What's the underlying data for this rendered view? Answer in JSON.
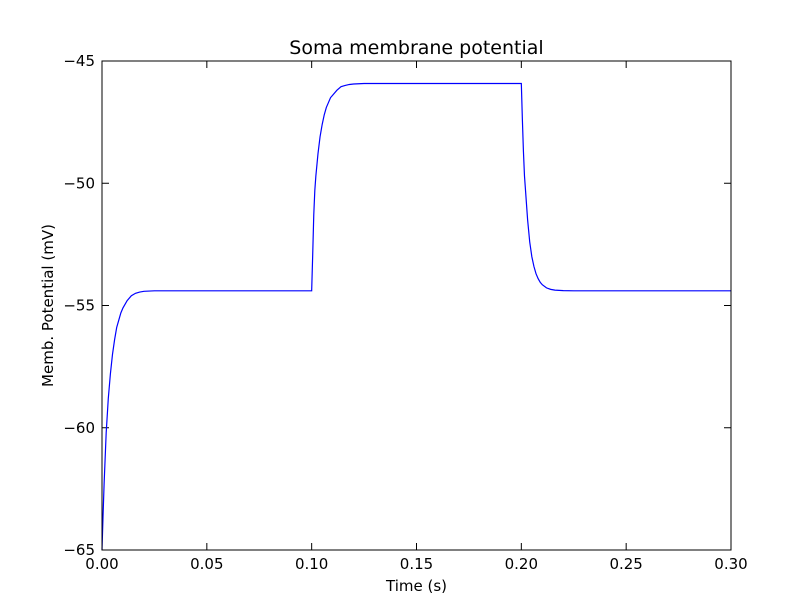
{
  "chart_data": {
    "type": "line",
    "title": "Soma membrane potential",
    "xlabel": "Time (s)",
    "ylabel": "Memb. Potential (mV)",
    "xlim": [
      0.0,
      0.3
    ],
    "ylim": [
      -65,
      -45
    ],
    "x_ticks": [
      "0.00",
      "0.05",
      "0.10",
      "0.15",
      "0.20",
      "0.25",
      "0.30"
    ],
    "y_ticks": [
      "−45",
      "−50",
      "−55",
      "−60",
      "−65"
    ],
    "x_tick_values": [
      0.0,
      0.05,
      0.1,
      0.15,
      0.2,
      0.25,
      0.3
    ],
    "y_tick_values": [
      -45,
      -50,
      -55,
      -60,
      -65
    ],
    "grid": false,
    "series": [
      {
        "color": "#0000ff",
        "x": [
          0.0,
          0.0005,
          0.001,
          0.002,
          0.003,
          0.004,
          0.005,
          0.006,
          0.007,
          0.008,
          0.009,
          0.01,
          0.012,
          0.014,
          0.016,
          0.018,
          0.02,
          0.025,
          0.03,
          0.05,
          0.08,
          0.1,
          0.1005,
          0.101,
          0.1015,
          0.102,
          0.103,
          0.104,
          0.105,
          0.106,
          0.107,
          0.108,
          0.109,
          0.11,
          0.112,
          0.114,
          0.116,
          0.118,
          0.12,
          0.125,
          0.13,
          0.15,
          0.18,
          0.2,
          0.2005,
          0.201,
          0.2015,
          0.202,
          0.203,
          0.204,
          0.205,
          0.206,
          0.207,
          0.208,
          0.209,
          0.21,
          0.212,
          0.214,
          0.216,
          0.218,
          0.22,
          0.225,
          0.23,
          0.25,
          0.28,
          0.3
        ],
        "y": [
          -65.0,
          -63.6,
          -62.3,
          -60.2,
          -58.8,
          -57.8,
          -57.0,
          -56.4,
          -55.9,
          -55.6,
          -55.3,
          -55.1,
          -54.8,
          -54.6,
          -54.5,
          -54.45,
          -54.42,
          -54.4,
          -54.4,
          -54.4,
          -54.4,
          -54.4,
          -52.9,
          -51.3,
          -50.3,
          -49.7,
          -48.8,
          -48.1,
          -47.6,
          -47.2,
          -46.9,
          -46.7,
          -46.5,
          -46.4,
          -46.2,
          -46.05,
          -46.0,
          -45.96,
          -45.94,
          -45.92,
          -45.92,
          -45.92,
          -45.92,
          -45.92,
          -47.4,
          -48.7,
          -49.7,
          -50.3,
          -51.5,
          -52.4,
          -53.0,
          -53.4,
          -53.7,
          -53.9,
          -54.05,
          -54.15,
          -54.28,
          -54.34,
          -54.37,
          -54.38,
          -54.39,
          -54.4,
          -54.4,
          -54.4,
          -54.4,
          -54.4
        ]
      }
    ]
  }
}
